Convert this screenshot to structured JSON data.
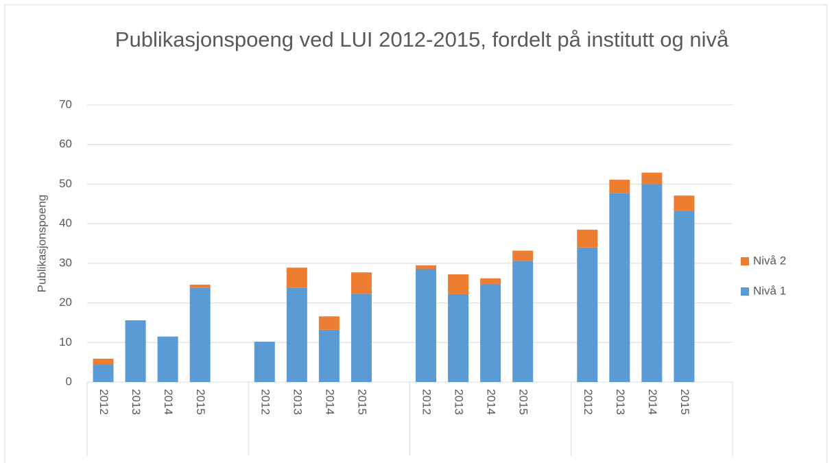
{
  "chart_data": {
    "type": "bar",
    "stacked": true,
    "title": "Publikasjonspoeng ved LUI 2012-2015, fordelt på institutt og nivå",
    "y_label": "Publikasjonspoeng",
    "categories": [
      "2012",
      "2013",
      "2014",
      "2015",
      "2012",
      "2013",
      "2014",
      "2015",
      "2012",
      "2013",
      "2014",
      "2015",
      "2012",
      "2013",
      "2014",
      "2015"
    ],
    "series": [
      {
        "name": "Nivå 1",
        "color": "#5b9bd5",
        "values": [
          4.5,
          15.6,
          11.5,
          23.8,
          10.2,
          23.8,
          13.2,
          22.3,
          28.5,
          22.2,
          24.7,
          30.6,
          34,
          47.7,
          50,
          43.3
        ]
      },
      {
        "name": "Nivå 2",
        "color": "#ed7d31",
        "values": [
          1.4,
          0,
          0,
          0.8,
          0,
          5.1,
          3.4,
          5.4,
          1.0,
          5.0,
          1.5,
          2.6,
          4.5,
          3.4,
          2.9,
          3.8
        ]
      }
    ],
    "ylim": [
      0,
      70
    ],
    "yticks": [
      0,
      10,
      20,
      30,
      40,
      50,
      60,
      70
    ],
    "grid": true,
    "legend": "right"
  }
}
